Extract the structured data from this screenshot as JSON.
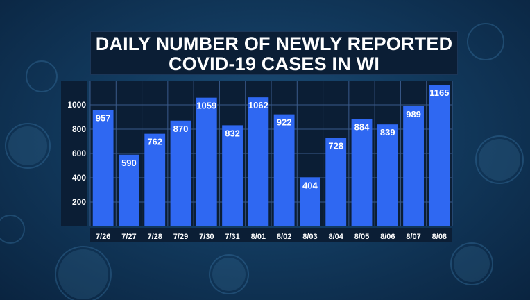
{
  "chart_data": {
    "type": "bar",
    "title": "DAILY NUMBER OF NEWLY REPORTED COVID-19 CASES IN WI",
    "title_lines": [
      "DAILY NUMBER OF NEWLY REPORTED",
      "COVID-19 CASES IN WI"
    ],
    "categories": [
      "7/26",
      "7/27",
      "7/28",
      "7/29",
      "7/30",
      "7/31",
      "8/01",
      "8/02",
      "8/03",
      "8/04",
      "8/05",
      "8/06",
      "8/07",
      "8/08"
    ],
    "values": [
      957,
      590,
      762,
      870,
      1059,
      832,
      1062,
      922,
      404,
      728,
      884,
      839,
      989,
      1165
    ],
    "yticks": [
      200,
      400,
      600,
      800,
      1000
    ],
    "ylim": [
      0,
      1200
    ],
    "xlabel": "",
    "ylabel": "",
    "grid": true,
    "colors": {
      "bar": "#2f68f2",
      "plot_background": "#0b1e35",
      "gridline": "#3a5a8a",
      "text": "#ffffff"
    }
  }
}
